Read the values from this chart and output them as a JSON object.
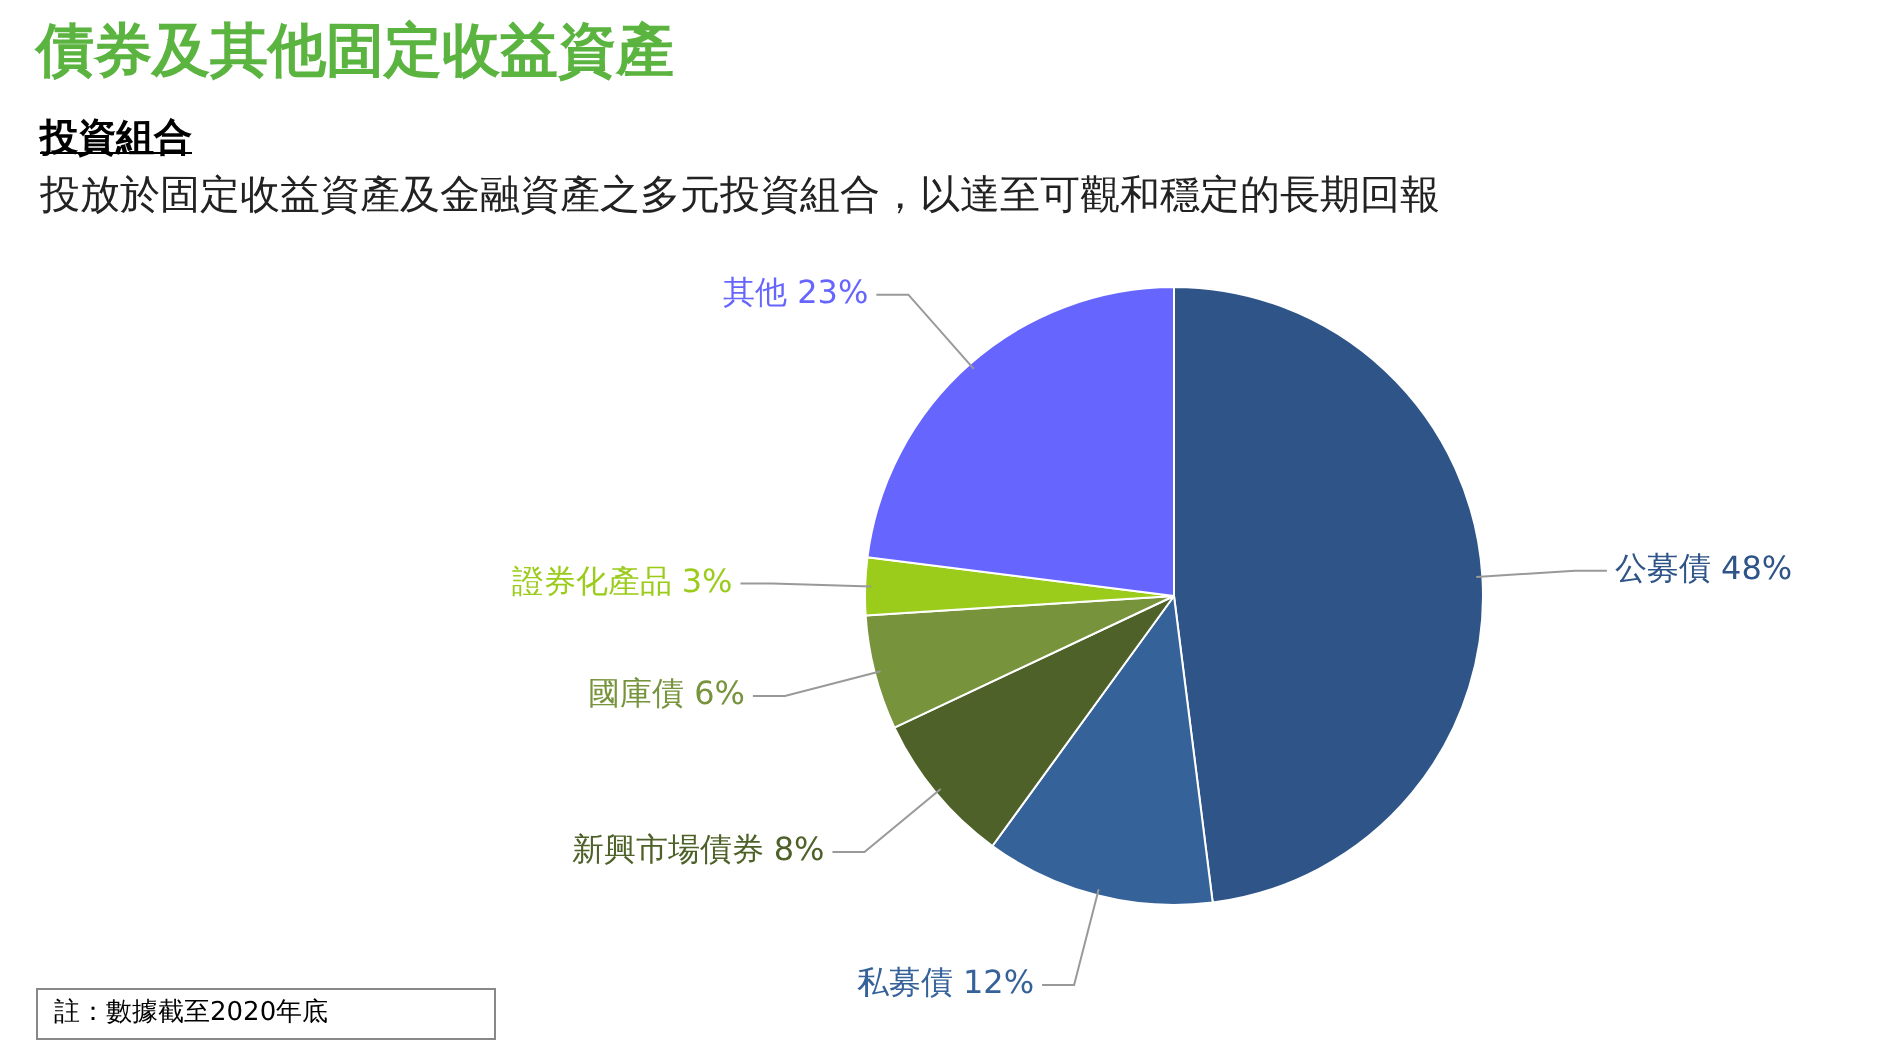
{
  "chart_data": {
    "type": "pie",
    "title": "債券及其他固定收益資產",
    "subtitle": "投資組合",
    "annotations": [
      "投放於固定收益資產及金融資產之多元投資組合，以達至可觀和穩定的長期回報",
      "註：數據截至2020年底"
    ],
    "categories": [
      "公募債",
      "私募債",
      "新興市場債券",
      "國庫債",
      "證券化產品",
      "其他"
    ],
    "values": [
      48,
      12,
      8,
      6,
      3,
      23
    ],
    "value_labels": [
      "48%",
      "12%",
      "8%",
      "6%",
      "3%",
      "23%"
    ],
    "colors": [
      "#2e5488",
      "#36629a",
      "#4e6128",
      "#77933c",
      "#9bcc1c",
      "#6666ff"
    ],
    "legend": false
  }
}
